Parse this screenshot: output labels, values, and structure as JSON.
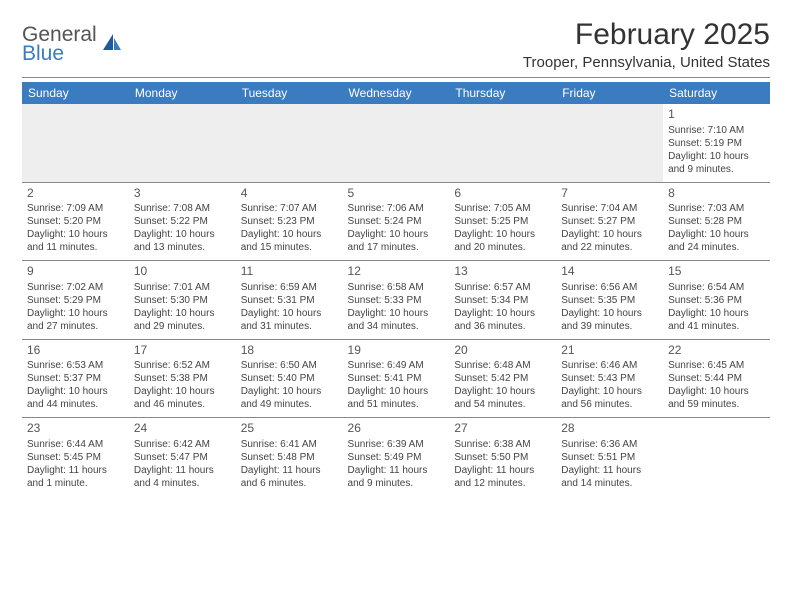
{
  "logo": {
    "word1": "General",
    "word2": "Blue"
  },
  "title": "February 2025",
  "location": "Trooper, Pennsylvania, United States",
  "colors": {
    "header_bg": "#3b7bbf",
    "header_fg": "#ffffff",
    "text": "#333333",
    "rule": "#888888",
    "empty_bg": "#eeeeee"
  },
  "day_headers": [
    "Sunday",
    "Monday",
    "Tuesday",
    "Wednesday",
    "Thursday",
    "Friday",
    "Saturday"
  ],
  "weeks": [
    [
      null,
      null,
      null,
      null,
      null,
      null,
      {
        "n": "1",
        "sr": "Sunrise: 7:10 AM",
        "ss": "Sunset: 5:19 PM",
        "dl1": "Daylight: 10 hours",
        "dl2": "and 9 minutes."
      }
    ],
    [
      {
        "n": "2",
        "sr": "Sunrise: 7:09 AM",
        "ss": "Sunset: 5:20 PM",
        "dl1": "Daylight: 10 hours",
        "dl2": "and 11 minutes."
      },
      {
        "n": "3",
        "sr": "Sunrise: 7:08 AM",
        "ss": "Sunset: 5:22 PM",
        "dl1": "Daylight: 10 hours",
        "dl2": "and 13 minutes."
      },
      {
        "n": "4",
        "sr": "Sunrise: 7:07 AM",
        "ss": "Sunset: 5:23 PM",
        "dl1": "Daylight: 10 hours",
        "dl2": "and 15 minutes."
      },
      {
        "n": "5",
        "sr": "Sunrise: 7:06 AM",
        "ss": "Sunset: 5:24 PM",
        "dl1": "Daylight: 10 hours",
        "dl2": "and 17 minutes."
      },
      {
        "n": "6",
        "sr": "Sunrise: 7:05 AM",
        "ss": "Sunset: 5:25 PM",
        "dl1": "Daylight: 10 hours",
        "dl2": "and 20 minutes."
      },
      {
        "n": "7",
        "sr": "Sunrise: 7:04 AM",
        "ss": "Sunset: 5:27 PM",
        "dl1": "Daylight: 10 hours",
        "dl2": "and 22 minutes."
      },
      {
        "n": "8",
        "sr": "Sunrise: 7:03 AM",
        "ss": "Sunset: 5:28 PM",
        "dl1": "Daylight: 10 hours",
        "dl2": "and 24 minutes."
      }
    ],
    [
      {
        "n": "9",
        "sr": "Sunrise: 7:02 AM",
        "ss": "Sunset: 5:29 PM",
        "dl1": "Daylight: 10 hours",
        "dl2": "and 27 minutes."
      },
      {
        "n": "10",
        "sr": "Sunrise: 7:01 AM",
        "ss": "Sunset: 5:30 PM",
        "dl1": "Daylight: 10 hours",
        "dl2": "and 29 minutes."
      },
      {
        "n": "11",
        "sr": "Sunrise: 6:59 AM",
        "ss": "Sunset: 5:31 PM",
        "dl1": "Daylight: 10 hours",
        "dl2": "and 31 minutes."
      },
      {
        "n": "12",
        "sr": "Sunrise: 6:58 AM",
        "ss": "Sunset: 5:33 PM",
        "dl1": "Daylight: 10 hours",
        "dl2": "and 34 minutes."
      },
      {
        "n": "13",
        "sr": "Sunrise: 6:57 AM",
        "ss": "Sunset: 5:34 PM",
        "dl1": "Daylight: 10 hours",
        "dl2": "and 36 minutes."
      },
      {
        "n": "14",
        "sr": "Sunrise: 6:56 AM",
        "ss": "Sunset: 5:35 PM",
        "dl1": "Daylight: 10 hours",
        "dl2": "and 39 minutes."
      },
      {
        "n": "15",
        "sr": "Sunrise: 6:54 AM",
        "ss": "Sunset: 5:36 PM",
        "dl1": "Daylight: 10 hours",
        "dl2": "and 41 minutes."
      }
    ],
    [
      {
        "n": "16",
        "sr": "Sunrise: 6:53 AM",
        "ss": "Sunset: 5:37 PM",
        "dl1": "Daylight: 10 hours",
        "dl2": "and 44 minutes."
      },
      {
        "n": "17",
        "sr": "Sunrise: 6:52 AM",
        "ss": "Sunset: 5:38 PM",
        "dl1": "Daylight: 10 hours",
        "dl2": "and 46 minutes."
      },
      {
        "n": "18",
        "sr": "Sunrise: 6:50 AM",
        "ss": "Sunset: 5:40 PM",
        "dl1": "Daylight: 10 hours",
        "dl2": "and 49 minutes."
      },
      {
        "n": "19",
        "sr": "Sunrise: 6:49 AM",
        "ss": "Sunset: 5:41 PM",
        "dl1": "Daylight: 10 hours",
        "dl2": "and 51 minutes."
      },
      {
        "n": "20",
        "sr": "Sunrise: 6:48 AM",
        "ss": "Sunset: 5:42 PM",
        "dl1": "Daylight: 10 hours",
        "dl2": "and 54 minutes."
      },
      {
        "n": "21",
        "sr": "Sunrise: 6:46 AM",
        "ss": "Sunset: 5:43 PM",
        "dl1": "Daylight: 10 hours",
        "dl2": "and 56 minutes."
      },
      {
        "n": "22",
        "sr": "Sunrise: 6:45 AM",
        "ss": "Sunset: 5:44 PM",
        "dl1": "Daylight: 10 hours",
        "dl2": "and 59 minutes."
      }
    ],
    [
      {
        "n": "23",
        "sr": "Sunrise: 6:44 AM",
        "ss": "Sunset: 5:45 PM",
        "dl1": "Daylight: 11 hours",
        "dl2": "and 1 minute."
      },
      {
        "n": "24",
        "sr": "Sunrise: 6:42 AM",
        "ss": "Sunset: 5:47 PM",
        "dl1": "Daylight: 11 hours",
        "dl2": "and 4 minutes."
      },
      {
        "n": "25",
        "sr": "Sunrise: 6:41 AM",
        "ss": "Sunset: 5:48 PM",
        "dl1": "Daylight: 11 hours",
        "dl2": "and 6 minutes."
      },
      {
        "n": "26",
        "sr": "Sunrise: 6:39 AM",
        "ss": "Sunset: 5:49 PM",
        "dl1": "Daylight: 11 hours",
        "dl2": "and 9 minutes."
      },
      {
        "n": "27",
        "sr": "Sunrise: 6:38 AM",
        "ss": "Sunset: 5:50 PM",
        "dl1": "Daylight: 11 hours",
        "dl2": "and 12 minutes."
      },
      {
        "n": "28",
        "sr": "Sunrise: 6:36 AM",
        "ss": "Sunset: 5:51 PM",
        "dl1": "Daylight: 11 hours",
        "dl2": "and 14 minutes."
      },
      null
    ]
  ]
}
